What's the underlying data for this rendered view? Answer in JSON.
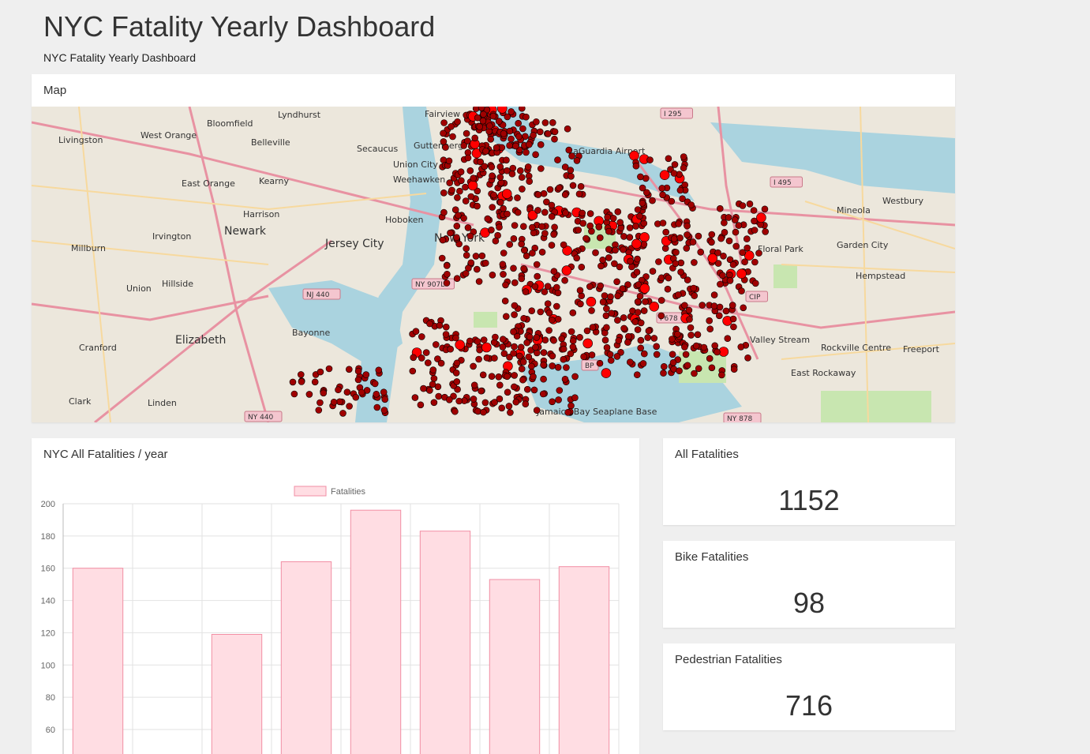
{
  "header": {
    "title": "NYC Fatality Yearly Dashboard",
    "subtitle": "NYC Fatality Yearly Dashboard"
  },
  "map": {
    "heading": "Map",
    "colors": {
      "land": "#ece7dc",
      "water": "#aad3df",
      "park": "#c8e6b0",
      "road_major": "#e892a2",
      "road_minor": "#f7d99e",
      "marker": "#a00000",
      "marker_large": "#ff0000"
    },
    "place_labels": [
      "Lyndhurst",
      "Fairview",
      "Bloomfield",
      "West Orange",
      "Livingston",
      "Belleville",
      "Secaucus",
      "Guttenberg",
      "Union City",
      "Weehawken",
      "East Orange",
      "Kearny",
      "Harrison",
      "Newark",
      "Hoboken",
      "Jersey City",
      "Irvington",
      "Millburn",
      "Union",
      "Hillside",
      "Elizabeth",
      "Bayonne",
      "Cranford",
      "Linden",
      "Clark",
      "LaGuardia Airport",
      "Mineola",
      "Westbury",
      "Garden City",
      "Floral Park",
      "Hempstead",
      "Valley Stream",
      "Rockville Centre",
      "Freeport",
      "East Rockaway",
      "New York",
      "Jamaica Bay Seaplane Base"
    ],
    "route_labels": [
      "I 295",
      "I 495",
      "NY 907L",
      "NJ 440",
      "I 678",
      "NY 440",
      "NY 878",
      "BP",
      "CIP"
    ]
  },
  "chart": {
    "heading": "NYC All Fatalities / year",
    "legend_label": "Fatalities",
    "colors": {
      "bar_fill": "#ffdde3",
      "bar_stroke": "#f28ea4",
      "grid": "#e2e2e2"
    },
    "chart_data": {
      "type": "bar",
      "categories": [
        "",
        "",
        "",
        "",
        "",
        "",
        "",
        ""
      ],
      "series": [
        {
          "name": "Fatalities",
          "values": [
            160,
            null,
            119,
            164,
            196,
            183,
            153,
            161
          ]
        }
      ],
      "yticks": [
        200,
        180,
        160,
        140,
        120,
        100,
        80,
        60
      ],
      "ylim": [
        60,
        200
      ],
      "grid": true,
      "legend_position": "top"
    }
  },
  "stats": {
    "all": {
      "label": "All Fatalities",
      "value": "1152"
    },
    "bike": {
      "label": "Bike Fatalities",
      "value": "98"
    },
    "pedestrian": {
      "label": "Pedestrian Fatalities",
      "value": "716"
    }
  }
}
